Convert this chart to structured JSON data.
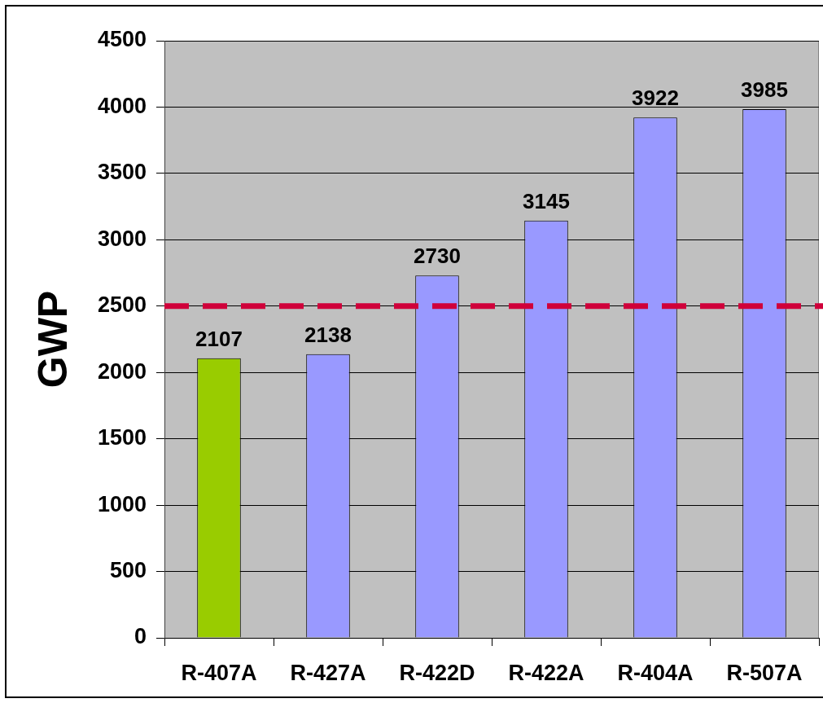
{
  "chart_data": {
    "type": "bar",
    "ylabel": "GWP",
    "categories": [
      "R-407A",
      "R-427A",
      "R-422D",
      "R-422A",
      "R-404A",
      "R-507A"
    ],
    "values": [
      2107,
      2138,
      2730,
      3145,
      3922,
      3985
    ],
    "colors": [
      "#99cc00",
      "#9999ff",
      "#9999ff",
      "#9999ff",
      "#9999ff",
      "#9999ff"
    ],
    "ylim": [
      0,
      4500
    ],
    "yticks": [
      0,
      500,
      1000,
      1500,
      2000,
      2500,
      3000,
      3500,
      4000,
      4500
    ],
    "grid": "y",
    "data_labels": true,
    "ref_lines": [
      {
        "axis": "y",
        "value": 2500,
        "color": "#d0003a",
        "line_style": "dashed"
      }
    ]
  }
}
